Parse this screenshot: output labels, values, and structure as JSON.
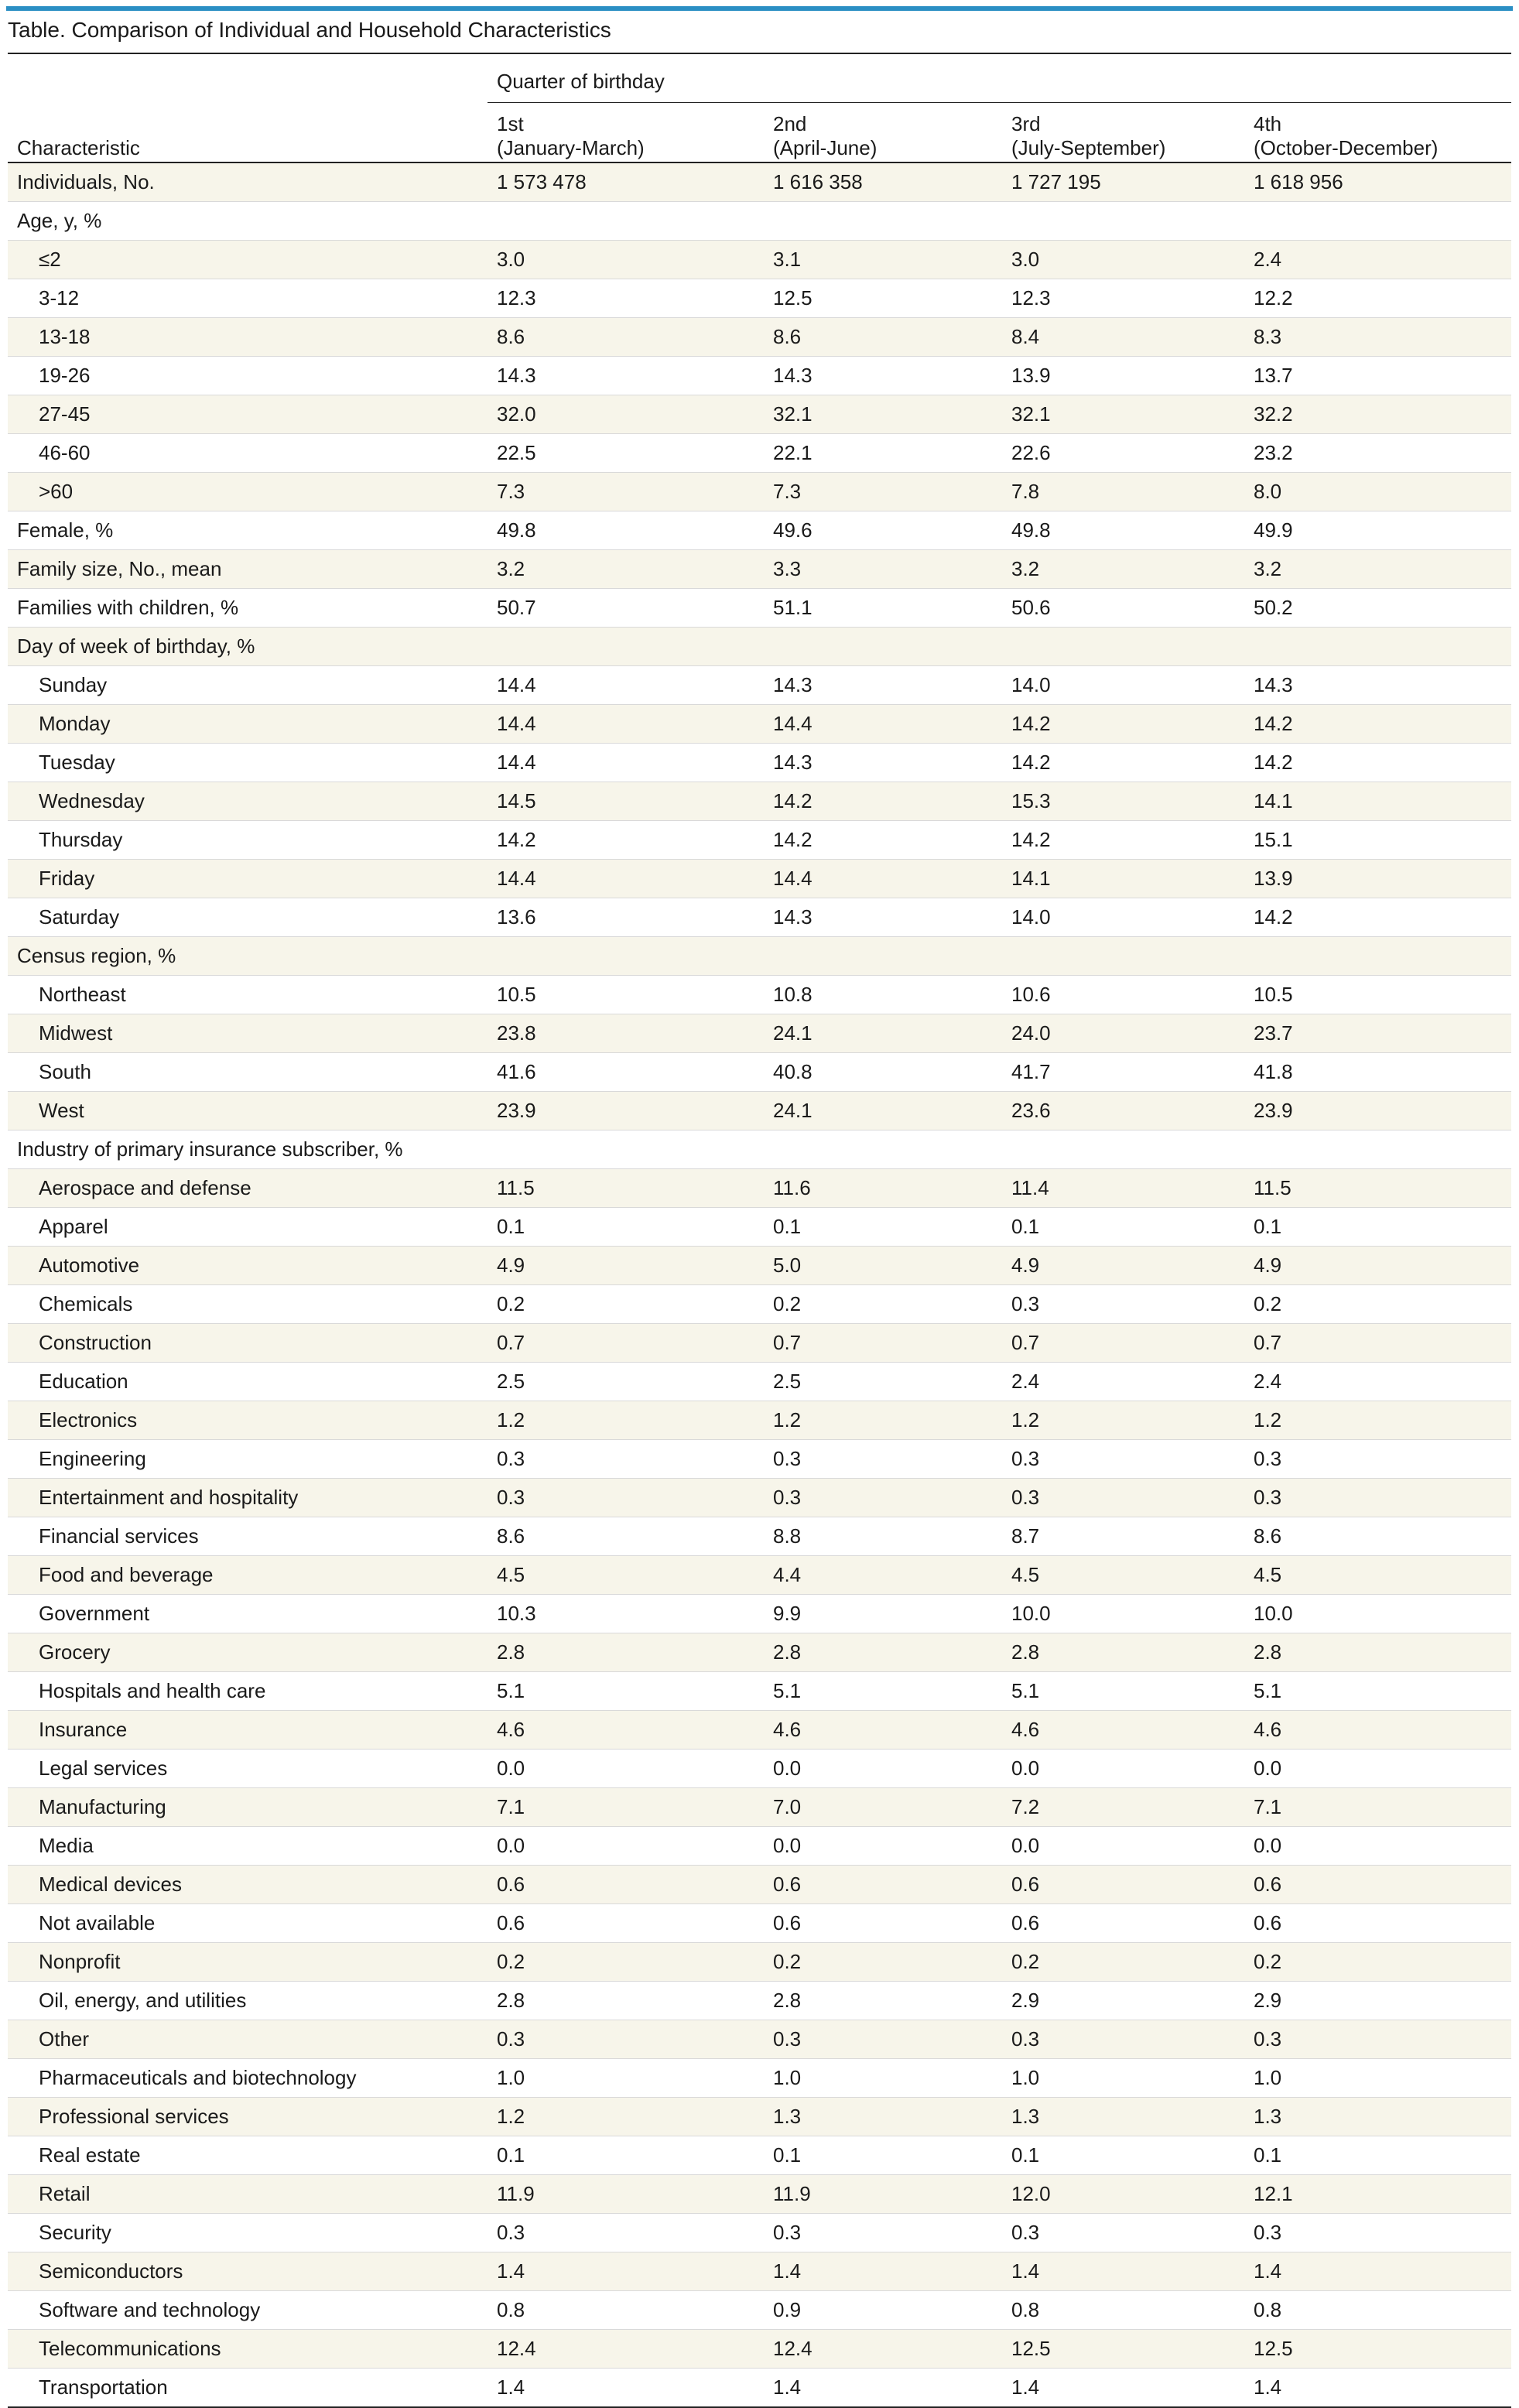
{
  "page": {
    "title": "Table. Comparison of Individual and Household Characteristics",
    "accent_color": "#2b8fc4",
    "shade_color": "#f7f5ea"
  },
  "table": {
    "characteristic_header": "Characteristic",
    "group_header": "Quarter of birthday",
    "columns": [
      {
        "label": "1st",
        "sub": "(January-March)"
      },
      {
        "label": "2nd",
        "sub": "(April-June)"
      },
      {
        "label": "3rd",
        "sub": "(July-September)"
      },
      {
        "label": "4th",
        "sub": "(October-December)"
      }
    ],
    "rows": [
      {
        "label": "Individuals, No.",
        "indent": false,
        "values": [
          "1 573 478",
          "1 616 358",
          "1 727 195",
          "1 618 956"
        ]
      },
      {
        "label": "Age, y, %",
        "indent": false,
        "values": [
          "",
          "",
          "",
          ""
        ]
      },
      {
        "label": "≤2",
        "indent": true,
        "values": [
          "3.0",
          "3.1",
          "3.0",
          "2.4"
        ]
      },
      {
        "label": "3-12",
        "indent": true,
        "values": [
          "12.3",
          "12.5",
          "12.3",
          "12.2"
        ]
      },
      {
        "label": "13-18",
        "indent": true,
        "values": [
          "8.6",
          "8.6",
          "8.4",
          "8.3"
        ]
      },
      {
        "label": "19-26",
        "indent": true,
        "values": [
          "14.3",
          "14.3",
          "13.9",
          "13.7"
        ]
      },
      {
        "label": "27-45",
        "indent": true,
        "values": [
          "32.0",
          "32.1",
          "32.1",
          "32.2"
        ]
      },
      {
        "label": "46-60",
        "indent": true,
        "values": [
          "22.5",
          "22.1",
          "22.6",
          "23.2"
        ]
      },
      {
        "label": ">60",
        "indent": true,
        "values": [
          "7.3",
          "7.3",
          "7.8",
          "8.0"
        ]
      },
      {
        "label": "Female, %",
        "indent": false,
        "values": [
          "49.8",
          "49.6",
          "49.8",
          "49.9"
        ]
      },
      {
        "label": "Family size, No., mean",
        "indent": false,
        "values": [
          "3.2",
          "3.3",
          "3.2",
          "3.2"
        ]
      },
      {
        "label": "Families with children, %",
        "indent": false,
        "values": [
          "50.7",
          "51.1",
          "50.6",
          "50.2"
        ]
      },
      {
        "label": "Day of week of birthday, %",
        "indent": false,
        "values": [
          "",
          "",
          "",
          ""
        ]
      },
      {
        "label": "Sunday",
        "indent": true,
        "values": [
          "14.4",
          "14.3",
          "14.0",
          "14.3"
        ]
      },
      {
        "label": "Monday",
        "indent": true,
        "values": [
          "14.4",
          "14.4",
          "14.2",
          "14.2"
        ]
      },
      {
        "label": "Tuesday",
        "indent": true,
        "values": [
          "14.4",
          "14.3",
          "14.2",
          "14.2"
        ]
      },
      {
        "label": "Wednesday",
        "indent": true,
        "values": [
          "14.5",
          "14.2",
          "15.3",
          "14.1"
        ]
      },
      {
        "label": "Thursday",
        "indent": true,
        "values": [
          "14.2",
          "14.2",
          "14.2",
          "15.1"
        ]
      },
      {
        "label": "Friday",
        "indent": true,
        "values": [
          "14.4",
          "14.4",
          "14.1",
          "13.9"
        ]
      },
      {
        "label": "Saturday",
        "indent": true,
        "values": [
          "13.6",
          "14.3",
          "14.0",
          "14.2"
        ]
      },
      {
        "label": "Census region, %",
        "indent": false,
        "values": [
          "",
          "",
          "",
          ""
        ]
      },
      {
        "label": "Northeast",
        "indent": true,
        "values": [
          "10.5",
          "10.8",
          "10.6",
          "10.5"
        ]
      },
      {
        "label": "Midwest",
        "indent": true,
        "values": [
          "23.8",
          "24.1",
          "24.0",
          "23.7"
        ]
      },
      {
        "label": "South",
        "indent": true,
        "values": [
          "41.6",
          "40.8",
          "41.7",
          "41.8"
        ]
      },
      {
        "label": "West",
        "indent": true,
        "values": [
          "23.9",
          "24.1",
          "23.6",
          "23.9"
        ]
      },
      {
        "label": "Industry of primary insurance subscriber, %",
        "indent": false,
        "values": [
          "",
          "",
          "",
          ""
        ]
      },
      {
        "label": "Aerospace and defense",
        "indent": true,
        "values": [
          "11.5",
          "11.6",
          "11.4",
          "11.5"
        ]
      },
      {
        "label": "Apparel",
        "indent": true,
        "values": [
          "0.1",
          "0.1",
          "0.1",
          "0.1"
        ]
      },
      {
        "label": "Automotive",
        "indent": true,
        "values": [
          "4.9",
          "5.0",
          "4.9",
          "4.9"
        ]
      },
      {
        "label": "Chemicals",
        "indent": true,
        "values": [
          "0.2",
          "0.2",
          "0.3",
          "0.2"
        ]
      },
      {
        "label": "Construction",
        "indent": true,
        "values": [
          "0.7",
          "0.7",
          "0.7",
          "0.7"
        ]
      },
      {
        "label": "Education",
        "indent": true,
        "values": [
          "2.5",
          "2.5",
          "2.4",
          "2.4"
        ]
      },
      {
        "label": "Electronics",
        "indent": true,
        "values": [
          "1.2",
          "1.2",
          "1.2",
          "1.2"
        ]
      },
      {
        "label": "Engineering",
        "indent": true,
        "values": [
          "0.3",
          "0.3",
          "0.3",
          "0.3"
        ]
      },
      {
        "label": "Entertainment and hospitality",
        "indent": true,
        "values": [
          "0.3",
          "0.3",
          "0.3",
          "0.3"
        ]
      },
      {
        "label": "Financial services",
        "indent": true,
        "values": [
          "8.6",
          "8.8",
          "8.7",
          "8.6"
        ]
      },
      {
        "label": "Food and beverage",
        "indent": true,
        "values": [
          "4.5",
          "4.4",
          "4.5",
          "4.5"
        ]
      },
      {
        "label": "Government",
        "indent": true,
        "values": [
          "10.3",
          "9.9",
          "10.0",
          "10.0"
        ]
      },
      {
        "label": "Grocery",
        "indent": true,
        "values": [
          "2.8",
          "2.8",
          "2.8",
          "2.8"
        ]
      },
      {
        "label": "Hospitals and health care",
        "indent": true,
        "values": [
          "5.1",
          "5.1",
          "5.1",
          "5.1"
        ]
      },
      {
        "label": "Insurance",
        "indent": true,
        "values": [
          "4.6",
          "4.6",
          "4.6",
          "4.6"
        ]
      },
      {
        "label": "Legal services",
        "indent": true,
        "values": [
          "0.0",
          "0.0",
          "0.0",
          "0.0"
        ]
      },
      {
        "label": "Manufacturing",
        "indent": true,
        "values": [
          "7.1",
          "7.0",
          "7.2",
          "7.1"
        ]
      },
      {
        "label": "Media",
        "indent": true,
        "values": [
          "0.0",
          "0.0",
          "0.0",
          "0.0"
        ]
      },
      {
        "label": "Medical devices",
        "indent": true,
        "values": [
          "0.6",
          "0.6",
          "0.6",
          "0.6"
        ]
      },
      {
        "label": "Not available",
        "indent": true,
        "values": [
          "0.6",
          "0.6",
          "0.6",
          "0.6"
        ]
      },
      {
        "label": "Nonprofit",
        "indent": true,
        "values": [
          "0.2",
          "0.2",
          "0.2",
          "0.2"
        ]
      },
      {
        "label": "Oil, energy, and utilities",
        "indent": true,
        "values": [
          "2.8",
          "2.8",
          "2.9",
          "2.9"
        ]
      },
      {
        "label": "Other",
        "indent": true,
        "values": [
          "0.3",
          "0.3",
          "0.3",
          "0.3"
        ]
      },
      {
        "label": "Pharmaceuticals and biotechnology",
        "indent": true,
        "values": [
          "1.0",
          "1.0",
          "1.0",
          "1.0"
        ]
      },
      {
        "label": "Professional services",
        "indent": true,
        "values": [
          "1.2",
          "1.3",
          "1.3",
          "1.3"
        ]
      },
      {
        "label": "Real estate",
        "indent": true,
        "values": [
          "0.1",
          "0.1",
          "0.1",
          "0.1"
        ]
      },
      {
        "label": "Retail",
        "indent": true,
        "values": [
          "11.9",
          "11.9",
          "12.0",
          "12.1"
        ]
      },
      {
        "label": "Security",
        "indent": true,
        "values": [
          "0.3",
          "0.3",
          "0.3",
          "0.3"
        ]
      },
      {
        "label": "Semiconductors",
        "indent": true,
        "values": [
          "1.4",
          "1.4",
          "1.4",
          "1.4"
        ]
      },
      {
        "label": "Software and technology",
        "indent": true,
        "values": [
          "0.8",
          "0.9",
          "0.8",
          "0.8"
        ]
      },
      {
        "label": "Telecommunications",
        "indent": true,
        "values": [
          "12.4",
          "12.4",
          "12.5",
          "12.5"
        ]
      },
      {
        "label": "Transportation",
        "indent": true,
        "values": [
          "1.4",
          "1.4",
          "1.4",
          "1.4"
        ]
      }
    ]
  }
}
